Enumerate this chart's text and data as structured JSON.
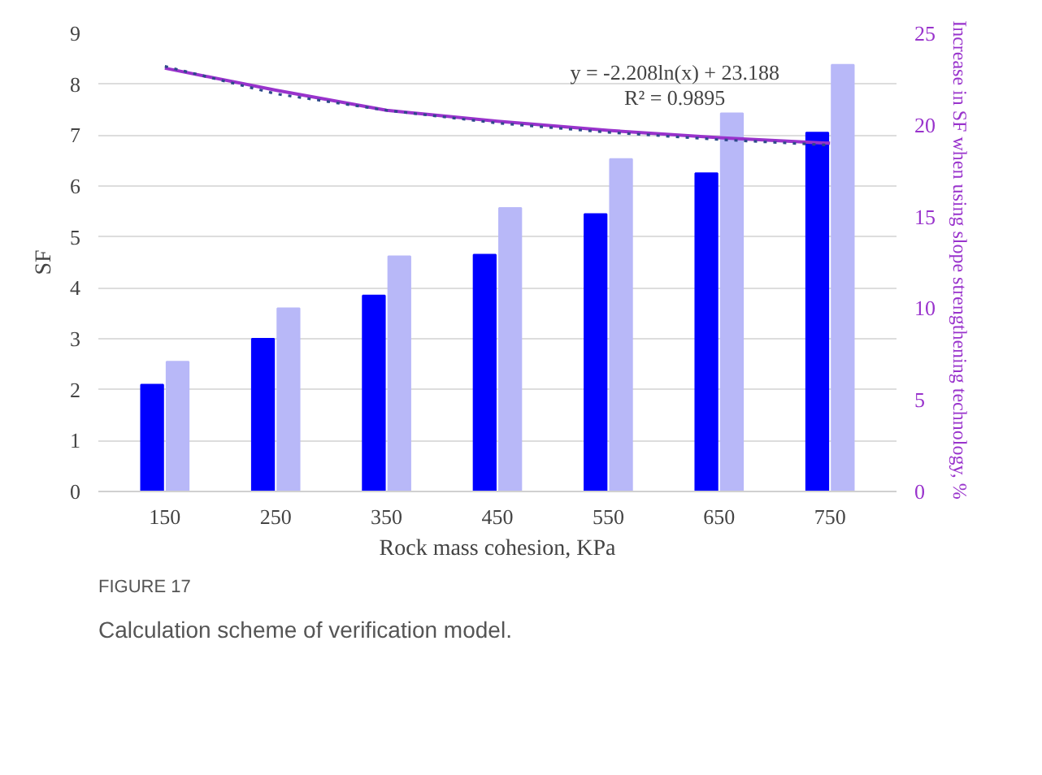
{
  "chart_data": {
    "type": "bar",
    "xlabel": "Rock mass cohesion, KPa",
    "ylabel": "SF",
    "y2label": "Increase in SF when using slope strengthening  technology, %",
    "categories": [
      "150",
      "250",
      "350",
      "450",
      "550",
      "650",
      "750"
    ],
    "series": [
      {
        "color": "#0000ff",
        "values": [
          2.1,
          3.0,
          3.85,
          4.65,
          5.45,
          6.25,
          7.05
        ]
      },
      {
        "color": "#b8b8f8",
        "values": [
          2.55,
          3.6,
          4.62,
          5.57,
          6.53,
          7.43,
          8.38
        ]
      },
      {
        "type": "line",
        "axis": "y2",
        "color": "#9933cc",
        "line_style": "solid",
        "values": [
          23.1,
          21.9,
          20.8,
          20.2,
          19.7,
          19.3,
          19.0
        ]
      },
      {
        "type": "line",
        "axis": "y2",
        "color": "#2e4a8a",
        "line_style": "dotted",
        "values": [
          23.2,
          21.7,
          20.8,
          20.1,
          19.6,
          19.2,
          18.9
        ]
      }
    ],
    "ylim": [
      0,
      9
    ],
    "yticks": [
      0,
      1,
      2,
      3,
      4,
      5,
      6,
      7,
      8,
      9
    ],
    "y2lim": [
      0,
      25
    ],
    "y2ticks": [
      0,
      5,
      10,
      15,
      20,
      25
    ],
    "grid": "y",
    "annotations": [
      "y = -2.208ln(x) + 23.188",
      "R² = 0.9895",
      "FIGURE 17",
      "Calculation scheme of verification model."
    ]
  }
}
